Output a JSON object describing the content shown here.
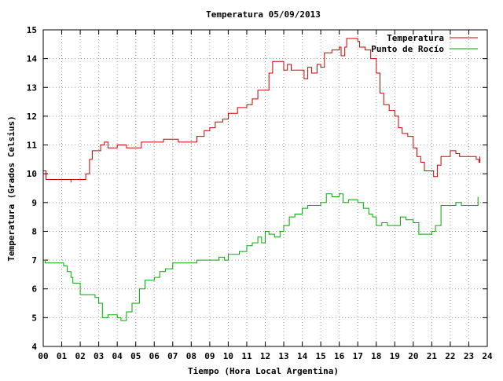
{
  "chart_data": {
    "type": "line",
    "title": "Temperatura 05/09/2013",
    "xlabel": "Tiempo (Hora Local Argentina)",
    "ylabel": "Temperatura (Grados Celsius)",
    "xlim": [
      0,
      24
    ],
    "ylim": [
      4,
      15
    ],
    "x_ticks": [
      "00",
      "01",
      "02",
      "03",
      "04",
      "05",
      "06",
      "07",
      "08",
      "09",
      "10",
      "11",
      "12",
      "13",
      "14",
      "15",
      "16",
      "17",
      "18",
      "19",
      "20",
      "21",
      "22",
      "23",
      "24"
    ],
    "y_ticks": [
      "4",
      "5",
      "6",
      "7",
      "8",
      "9",
      "10",
      "11",
      "12",
      "13",
      "14",
      "15"
    ],
    "grid": true,
    "legend_position": "top-right",
    "series": [
      {
        "name": "Temperatura",
        "color": "#cc0000",
        "points": [
          [
            0,
            10.1
          ],
          [
            0.15,
            9.8
          ],
          [
            1.0,
            9.8
          ],
          [
            1.5,
            9.7
          ],
          [
            1.5,
            9.8
          ],
          [
            2.0,
            9.8
          ],
          [
            2.3,
            10.0
          ],
          [
            2.5,
            10.5
          ],
          [
            2.65,
            10.8
          ],
          [
            3.0,
            10.8
          ],
          [
            3.1,
            11.0
          ],
          [
            3.3,
            11.1
          ],
          [
            3.5,
            10.9
          ],
          [
            4.0,
            11.0
          ],
          [
            4.5,
            10.9
          ],
          [
            5.0,
            10.9
          ],
          [
            5.3,
            11.1
          ],
          [
            6.0,
            11.1
          ],
          [
            6.5,
            11.2
          ],
          [
            7.0,
            11.2
          ],
          [
            7.3,
            11.1
          ],
          [
            8.0,
            11.1
          ],
          [
            8.3,
            11.3
          ],
          [
            8.7,
            11.5
          ],
          [
            9.0,
            11.6
          ],
          [
            9.3,
            11.8
          ],
          [
            9.7,
            11.9
          ],
          [
            10.0,
            12.1
          ],
          [
            10.5,
            12.3
          ],
          [
            11.0,
            12.4
          ],
          [
            11.3,
            12.6
          ],
          [
            11.6,
            12.9
          ],
          [
            12.0,
            12.9
          ],
          [
            12.2,
            13.5
          ],
          [
            12.4,
            13.9
          ],
          [
            12.9,
            13.9
          ],
          [
            13.0,
            13.6
          ],
          [
            13.2,
            13.8
          ],
          [
            13.4,
            13.6
          ],
          [
            14.0,
            13.6
          ],
          [
            14.1,
            13.3
          ],
          [
            14.3,
            13.7
          ],
          [
            14.5,
            13.5
          ],
          [
            14.8,
            13.8
          ],
          [
            15.0,
            13.7
          ],
          [
            15.2,
            14.2
          ],
          [
            15.6,
            14.3
          ],
          [
            16.0,
            14.4
          ],
          [
            16.1,
            14.1
          ],
          [
            16.3,
            14.4
          ],
          [
            16.4,
            14.7
          ],
          [
            17.0,
            14.6
          ],
          [
            17.1,
            14.4
          ],
          [
            17.4,
            14.3
          ],
          [
            17.7,
            14.0
          ],
          [
            18.0,
            13.5
          ],
          [
            18.2,
            12.8
          ],
          [
            18.4,
            12.4
          ],
          [
            18.7,
            12.2
          ],
          [
            19.0,
            12.0
          ],
          [
            19.2,
            11.6
          ],
          [
            19.4,
            11.4
          ],
          [
            19.7,
            11.3
          ],
          [
            20.0,
            10.9
          ],
          [
            20.2,
            10.6
          ],
          [
            20.4,
            10.4
          ],
          [
            20.6,
            10.1
          ],
          [
            21.0,
            10.1
          ],
          [
            21.1,
            9.9
          ],
          [
            21.3,
            10.3
          ],
          [
            21.5,
            10.6
          ],
          [
            21.8,
            10.6
          ],
          [
            22.0,
            10.8
          ],
          [
            22.3,
            10.7
          ],
          [
            22.5,
            10.6
          ],
          [
            23.0,
            10.6
          ],
          [
            23.4,
            10.5
          ],
          [
            23.55,
            10.4
          ],
          [
            23.6,
            10.6
          ]
        ]
      },
      {
        "name": "Punto de Rocío",
        "color": "#00aa00",
        "points": [
          [
            0,
            7.0
          ],
          [
            0.1,
            6.9
          ],
          [
            1.0,
            6.9
          ],
          [
            1.1,
            6.8
          ],
          [
            1.3,
            6.6
          ],
          [
            1.5,
            6.4
          ],
          [
            1.6,
            6.2
          ],
          [
            1.8,
            6.2
          ],
          [
            2.0,
            5.8
          ],
          [
            2.2,
            5.8
          ],
          [
            2.5,
            5.8
          ],
          [
            2.8,
            5.7
          ],
          [
            3.0,
            5.5
          ],
          [
            3.2,
            5.0
          ],
          [
            3.5,
            5.1
          ],
          [
            4.0,
            5.0
          ],
          [
            4.2,
            4.9
          ],
          [
            4.5,
            5.2
          ],
          [
            4.8,
            5.5
          ],
          [
            5.0,
            5.5
          ],
          [
            5.2,
            6.0
          ],
          [
            5.5,
            6.3
          ],
          [
            6.0,
            6.4
          ],
          [
            6.3,
            6.6
          ],
          [
            6.6,
            6.7
          ],
          [
            7.0,
            6.9
          ],
          [
            7.5,
            6.9
          ],
          [
            8.0,
            6.9
          ],
          [
            8.3,
            7.0
          ],
          [
            8.7,
            7.0
          ],
          [
            9.0,
            7.0
          ],
          [
            9.5,
            7.1
          ],
          [
            9.8,
            7.0
          ],
          [
            10.0,
            7.2
          ],
          [
            10.3,
            7.2
          ],
          [
            10.6,
            7.3
          ],
          [
            11.0,
            7.5
          ],
          [
            11.3,
            7.6
          ],
          [
            11.6,
            7.8
          ],
          [
            11.8,
            7.6
          ],
          [
            12.0,
            8.0
          ],
          [
            12.2,
            7.9
          ],
          [
            12.5,
            7.8
          ],
          [
            12.8,
            8.0
          ],
          [
            13.0,
            8.2
          ],
          [
            13.3,
            8.5
          ],
          [
            13.6,
            8.6
          ],
          [
            14.0,
            8.8
          ],
          [
            14.3,
            8.9
          ],
          [
            14.6,
            8.9
          ],
          [
            15.0,
            9.0
          ],
          [
            15.3,
            9.3
          ],
          [
            15.6,
            9.2
          ],
          [
            16.0,
            9.3
          ],
          [
            16.2,
            9.0
          ],
          [
            16.5,
            9.1
          ],
          [
            17.0,
            9.0
          ],
          [
            17.3,
            8.8
          ],
          [
            17.6,
            8.6
          ],
          [
            17.8,
            8.5
          ],
          [
            18.0,
            8.2
          ],
          [
            18.3,
            8.3
          ],
          [
            18.6,
            8.2
          ],
          [
            19.0,
            8.2
          ],
          [
            19.3,
            8.5
          ],
          [
            19.6,
            8.4
          ],
          [
            20.0,
            8.3
          ],
          [
            20.3,
            7.9
          ],
          [
            20.6,
            7.9
          ],
          [
            21.0,
            8.0
          ],
          [
            21.2,
            8.2
          ],
          [
            21.5,
            8.9
          ],
          [
            22.0,
            8.9
          ],
          [
            22.3,
            9.0
          ],
          [
            22.6,
            8.9
          ],
          [
            23.0,
            8.9
          ],
          [
            23.4,
            8.9
          ],
          [
            23.5,
            9.2
          ]
        ]
      }
    ]
  }
}
